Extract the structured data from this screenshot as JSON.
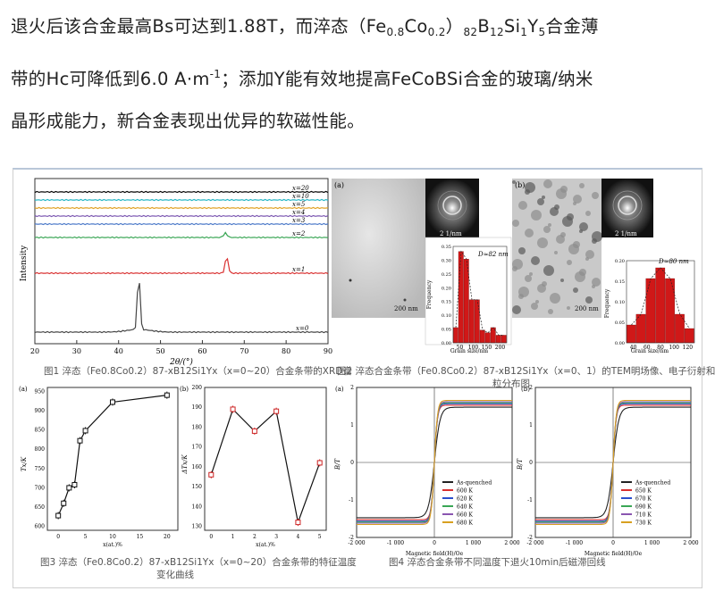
{
  "paragraph": {
    "line1_a": "退火后该合金最高Bs可达到1.88T，而淬态（Fe",
    "line1_sub1": "0.8",
    "line1_b": "Co",
    "line1_sub2": "0.2",
    "line1_c": "）",
    "line1_sub3": "82",
    "line1_d": "B",
    "line1_sub4": "12",
    "line1_e": "Si",
    "line1_sub5": "1",
    "line1_f": "Y",
    "line1_sub6": "5",
    "line1_g": "合金薄",
    "line2_a": "带的Hc可降低到6.0 A·m",
    "line2_sup": "-1",
    "line2_b": "；添加Y能有效地提高FeCoBSi合金的玻璃/纳米",
    "line3": "晶形成能力，新合金表现出优异的软磁性能。"
  },
  "fig1": {
    "caption": "图1 淬态（Fe0.8Co0.2）87-xB12Si1Yx（x=0~20）合金条带的XRD谱",
    "ylabel": "Intensity",
    "xlabel": "2θ/(°)",
    "xticks": [
      "20",
      "30",
      "40",
      "50",
      "60",
      "70",
      "80",
      "90"
    ],
    "series": [
      {
        "label": "x=20",
        "color": "#000000"
      },
      {
        "label": "x=10",
        "color": "#23b5c4"
      },
      {
        "label": "x=5",
        "color": "#e0a020"
      },
      {
        "label": "x=4",
        "color": "#7a55b0"
      },
      {
        "label": "x=3",
        "color": "#4a78c8"
      },
      {
        "label": "x=2",
        "color": "#3aa655"
      },
      {
        "label": "x=1",
        "color": "#d93030"
      },
      {
        "label": "x=0",
        "color": "#444444"
      }
    ]
  },
  "fig2": {
    "caption": "图2 淬态合金条带（Fe0.8Co0.2）87-xB12Si1Yx（x=0、1）的TEM明场像、电子衍射和晶",
    "caption2": "粒分布图",
    "panel_a": {
      "tag": "(a)",
      "scale": "200 nm",
      "diff_scale": "2 1/nm",
      "dlabel": "D≈82 nm",
      "xlabel": "Grain size/nm",
      "ylabel": "Frequency",
      "xticks": [
        "50",
        "100",
        "150",
        "200"
      ],
      "yticks": [
        "0.00",
        "0.05",
        "0.10",
        "0.15",
        "0.20",
        "0.25",
        "0.30",
        "0.35"
      ]
    },
    "panel_b": {
      "tag": "(b)",
      "scale": "200 nm",
      "diff_scale": "2 1/nm",
      "dlabel": "D≈80 nm",
      "xlabel": "Grain size/nm",
      "ylabel": "Frequency",
      "xticks": [
        "40",
        "60",
        "80",
        "100",
        "120"
      ],
      "yticks": [
        "0.00",
        "0.05",
        "0.10",
        "0.15",
        "0.20"
      ]
    }
  },
  "fig3": {
    "caption": "图3 淬态（Fe0.8Co0.2）87-xB12Si1Yx（x=0~20）合金条带的特征温度",
    "caption2": "变化曲线",
    "panel_a": {
      "tag": "(a)",
      "ylabel": "Tx/K",
      "xlabel": "x(at.)%",
      "xticks": [
        "0",
        "5",
        "10",
        "15",
        "20"
      ],
      "yticks": [
        "600",
        "650",
        "700",
        "750",
        "800",
        "850",
        "900",
        "950"
      ]
    },
    "panel_b": {
      "tag": "(b)",
      "ylabel": "ΔTx/K",
      "xlabel": "x(at.)%",
      "xticks": [
        "0",
        "1",
        "2",
        "3",
        "4",
        "5"
      ],
      "yticks": [
        "130",
        "140",
        "150",
        "160",
        "170",
        "180",
        "190",
        "200"
      ]
    }
  },
  "fig4": {
    "caption": "图4 淬态合金条带不同温度下退火10min后磁滞回线",
    "panel_a": {
      "tag": "(a)",
      "ylabel": "B/T",
      "xlabel": "Magnetic field(H)/Oe",
      "xticks": [
        "-2 000",
        "-1 000",
        "0",
        "1 000",
        "2 000"
      ],
      "yticks": [
        "-2",
        "-1",
        "0",
        "1",
        "2"
      ],
      "legend": [
        {
          "label": "As-quenched",
          "color": "#222222"
        },
        {
          "label": "600 K",
          "color": "#d93030"
        },
        {
          "label": "620 K",
          "color": "#2a4fcc"
        },
        {
          "label": "640 K",
          "color": "#3aa655"
        },
        {
          "label": "660 K",
          "color": "#8a55b0"
        },
        {
          "label": "680 K",
          "color": "#d8a020"
        }
      ]
    },
    "panel_b": {
      "tag": "(b)",
      "ylabel": "B/T",
      "xlabel": "Magnetic field(H)/Oe",
      "xticks": [
        "-2 000",
        "-1 000",
        "0",
        "1 000",
        "2 000"
      ],
      "yticks": [
        "-2",
        "-1",
        "0",
        "1",
        "2"
      ],
      "legend": [
        {
          "label": "As-quenched",
          "color": "#222222"
        },
        {
          "label": "650 K",
          "color": "#d93030"
        },
        {
          "label": "670 K",
          "color": "#2a4fcc"
        },
        {
          "label": "690 K",
          "color": "#3aa655"
        },
        {
          "label": "710 K",
          "color": "#8a55b0"
        },
        {
          "label": "730 K",
          "color": "#d8a020"
        }
      ]
    }
  },
  "chart_data": [
    {
      "type": "line",
      "title": "",
      "xlabel": "x(at.)%",
      "ylabel": "Tx/K",
      "x": [
        0,
        1,
        2,
        3,
        4,
        5,
        10,
        20
      ],
      "values": [
        628,
        660,
        700,
        708,
        822,
        848,
        922,
        940
      ],
      "ylim": [
        600,
        960
      ]
    },
    {
      "type": "line",
      "title": "",
      "xlabel": "x(at.)%",
      "ylabel": "ΔTx/K",
      "x": [
        0,
        1,
        2,
        3,
        4,
        5
      ],
      "values": [
        156,
        189,
        178,
        188,
        132,
        162
      ],
      "ylim": [
        130,
        200
      ]
    },
    {
      "type": "bar",
      "title": "",
      "xlabel": "Grain size/nm",
      "ylabel": "Frequency",
      "categories": [
        "35",
        "45",
        "55",
        "65",
        "75",
        "85",
        "95",
        "125",
        "155",
        "165"
      ],
      "values": [
        0.06,
        0.36,
        0.33,
        0.17,
        0.17,
        0.05,
        0.04,
        0.06,
        0.03,
        0.03
      ]
    },
    {
      "type": "bar",
      "title": "",
      "xlabel": "Grain size/nm",
      "ylabel": "Frequency",
      "categories": [
        "50",
        "60",
        "70",
        "80",
        "90",
        "100",
        "110"
      ],
      "values": [
        0.05,
        0.08,
        0.18,
        0.21,
        0.18,
        0.08,
        0.04
      ]
    }
  ]
}
